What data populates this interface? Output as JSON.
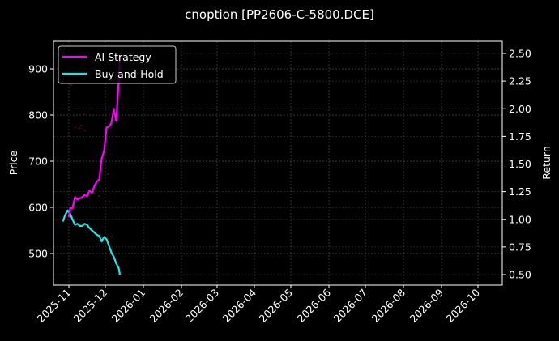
{
  "chart_data": {
    "type": "line",
    "title": "cnoption [PP2606-C-5800.DCE]",
    "xlabel": "",
    "ylabel": "Price",
    "ylabel_right": "Return",
    "ylim": [
      435,
      960
    ],
    "ylim_right": [
      0.42,
      2.6
    ],
    "grid": true,
    "legend_position": "upper left",
    "x_tick_labels": [
      "2025-11",
      "2025-12",
      "2026-01",
      "2026-02",
      "2026-03",
      "2026-04",
      "2026-05",
      "2026-06",
      "2026-07",
      "2026-08",
      "2026-09",
      "2026-10"
    ],
    "y_tick_labels": [
      "500",
      "600",
      "700",
      "800",
      "900"
    ],
    "y_right_tick_labels": [
      "0.50",
      "0.75",
      "1.00",
      "1.25",
      "1.50",
      "1.75",
      "2.00",
      "2.25",
      "2.50"
    ],
    "series": [
      {
        "name": "AI Strategy",
        "color": "#ff00ff",
        "axis": "right",
        "x": [
          "2025-11-01",
          "2025-11-02",
          "2025-11-04",
          "2025-11-06",
          "2025-11-08",
          "2025-11-10",
          "2025-11-12",
          "2025-11-14",
          "2025-11-16",
          "2025-11-18",
          "2025-11-20",
          "2025-11-22",
          "2025-11-24",
          "2025-11-26",
          "2025-11-28",
          "2025-11-30",
          "2025-12-02",
          "2025-12-04",
          "2025-12-06",
          "2025-12-08",
          "2025-12-10",
          "2025-12-12",
          "2025-12-13"
        ],
        "values": [
          1.02,
          1.1,
          1.1,
          1.2,
          1.18,
          1.19,
          1.2,
          1.22,
          1.21,
          1.26,
          1.24,
          1.3,
          1.34,
          1.36,
          1.55,
          1.62,
          1.83,
          1.84,
          1.87,
          2.0,
          1.89,
          2.25,
          2.45
        ]
      },
      {
        "name": "Buy-and-Hold",
        "color": "#22e5e5",
        "axis": "right",
        "x": [
          "2025-10-27",
          "2025-10-29",
          "2025-10-31",
          "2025-11-02",
          "2025-11-04",
          "2025-11-06",
          "2025-11-08",
          "2025-11-10",
          "2025-11-12",
          "2025-11-14",
          "2025-11-16",
          "2025-11-18",
          "2025-11-20",
          "2025-11-22",
          "2025-11-24",
          "2025-11-26",
          "2025-11-28",
          "2025-11-30",
          "2025-12-02",
          "2025-12-04",
          "2025-12-06",
          "2025-12-08",
          "2025-12-10",
          "2025-12-12",
          "2025-12-13"
        ],
        "values": [
          0.98,
          1.04,
          1.08,
          1.05,
          1.0,
          0.95,
          0.96,
          0.94,
          0.94,
          0.96,
          0.95,
          0.92,
          0.9,
          0.88,
          0.86,
          0.85,
          0.8,
          0.84,
          0.82,
          0.76,
          0.7,
          0.66,
          0.6,
          0.56,
          0.5
        ]
      }
    ],
    "price_equivalent_note_hidden": false
  },
  "legend": {
    "items": [
      {
        "label": "AI Strategy",
        "color": "#ff00ff"
      },
      {
        "label": "Buy-and-Hold",
        "color": "#22e5e5"
      }
    ]
  },
  "colors": {
    "background": "#000000",
    "axis": "#ffffff",
    "grid": "#555555",
    "ai_strategy": "#ff00ff",
    "buy_and_hold": "#22e5e5"
  }
}
